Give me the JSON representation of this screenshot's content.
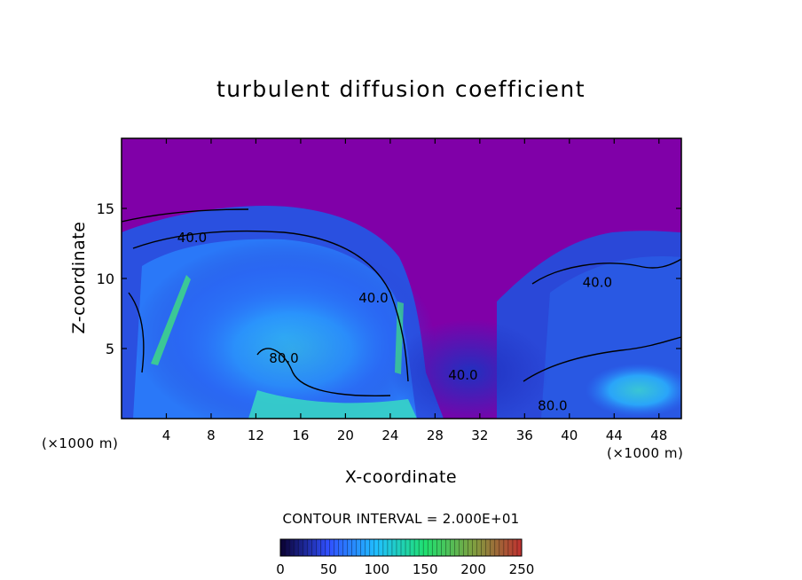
{
  "chart_data": {
    "type": "heatmap",
    "title": "turbulent diffusion coefficient",
    "xlabel": "X-coordinate",
    "ylabel": "Z-coordinate",
    "x_unit_left": "(×1000 m)",
    "x_unit_right": "(×1000 m)",
    "xlim": [
      0,
      50
    ],
    "ylim": [
      0,
      20
    ],
    "x_ticks": [
      4,
      8,
      12,
      16,
      20,
      24,
      28,
      32,
      36,
      40,
      44,
      48
    ],
    "y_ticks": [
      5,
      10,
      15
    ],
    "contour_interval_text": "CONTOUR INTERVAL = 2.000E+01",
    "contour_labels": [
      {
        "text": "40.0",
        "x": 6.3,
        "z": 12.6
      },
      {
        "text": "40.0",
        "x": 22.5,
        "z": 8.3
      },
      {
        "text": "80.0",
        "x": 14.5,
        "z": 4.0
      },
      {
        "text": "40.0",
        "x": 42.5,
        "z": 9.4
      },
      {
        "text": "40.0",
        "x": 30.5,
        "z": 2.8
      },
      {
        "text": "80.0",
        "x": 38.5,
        "z": 0.6
      }
    ],
    "colorbar": {
      "min": 0,
      "max": 250,
      "ticks": [
        0,
        50,
        100,
        150,
        200,
        250
      ],
      "colors": [
        "#0a0030",
        "#3050ff",
        "#20c0ff",
        "#20e070",
        "#7fa040",
        "#c03030"
      ]
    },
    "colors": {
      "background_field": "#8000a8",
      "low": "#2a30d0",
      "mid": "#2a8cff",
      "high": "#38e0c0",
      "peak": "#40e080"
    }
  }
}
